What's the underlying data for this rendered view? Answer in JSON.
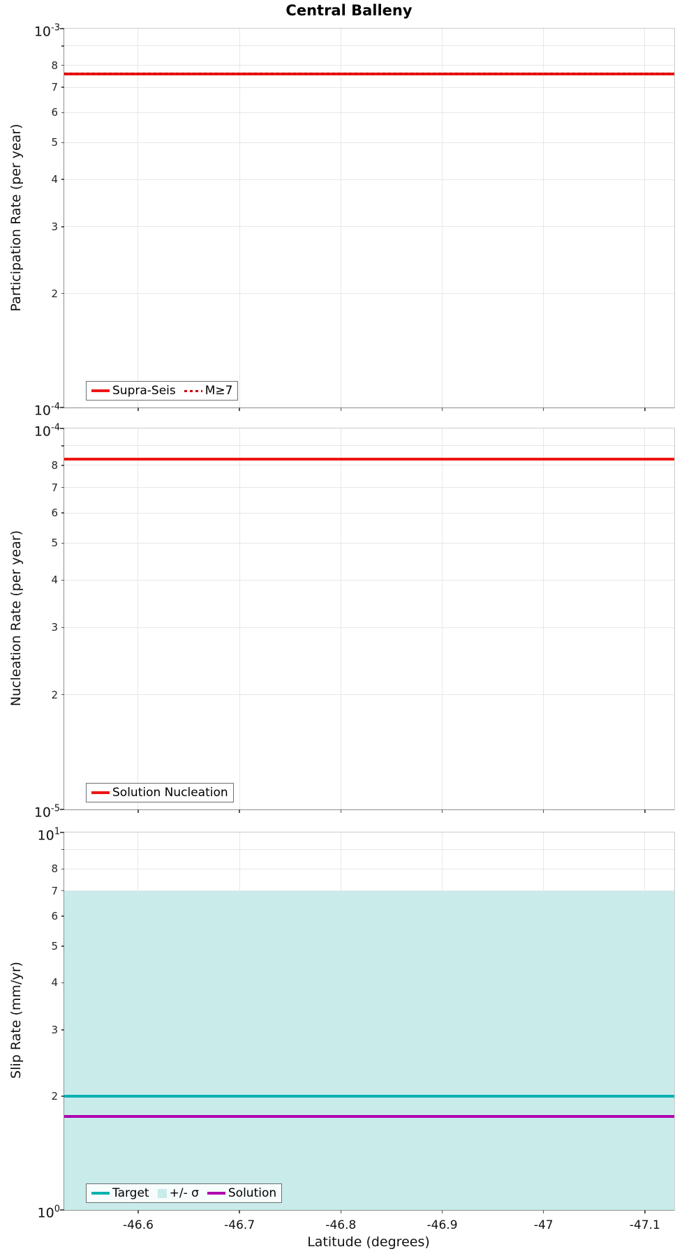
{
  "figure": {
    "title": "Central Balleny",
    "xlabel": "Latitude (degrees)"
  },
  "chart_data": [
    {
      "type": "line",
      "name": "participation-rate",
      "ylabel": "Participation Rate (per year)",
      "yscale": "log",
      "ylim": [
        0.0001,
        0.001
      ],
      "y_decade_top": {
        "base": "10",
        "exp": "-3"
      },
      "y_decade_bottom": {
        "base": "10",
        "exp": "-4"
      },
      "y_minor_gridlines": [
        9,
        8,
        7,
        6,
        5,
        4,
        3,
        2
      ],
      "y_minor_labels": [
        8,
        7,
        6,
        5,
        4,
        3,
        2
      ],
      "xlim": [
        -46.527,
        -47.129
      ],
      "xticks": [
        {
          "v": -46.6,
          "label": "-46.6"
        },
        {
          "v": -46.7,
          "label": "-46.7"
        },
        {
          "v": -46.8,
          "label": "-46.8"
        },
        {
          "v": -46.9,
          "label": "-46.9"
        },
        {
          "v": -47.0,
          "label": "-47"
        },
        {
          "v": -47.1,
          "label": "-47.1"
        }
      ],
      "show_x_tick_labels": false,
      "grid": true,
      "legend_position": "lower-left",
      "items": [
        {
          "kind": "line",
          "label": "Supra-Seis",
          "color": "#f01414",
          "dash": "solid",
          "width": 4,
          "y": 0.00076
        },
        {
          "kind": "line",
          "label": "M≥7",
          "color": "#d40000",
          "dash": "dotted",
          "width": 2.5,
          "y": 0.00076
        }
      ]
    },
    {
      "type": "line",
      "name": "nucleation-rate",
      "ylabel": "Nucleation Rate (per year)",
      "yscale": "log",
      "ylim": [
        1e-05,
        0.0001
      ],
      "y_decade_top": {
        "base": "10",
        "exp": "-4"
      },
      "y_decade_bottom": {
        "base": "10",
        "exp": "-5"
      },
      "y_minor_gridlines": [
        9,
        8,
        7,
        6,
        5,
        4,
        3,
        2
      ],
      "y_minor_labels": [
        8,
        7,
        6,
        5,
        4,
        3,
        2
      ],
      "xlim": [
        -46.527,
        -47.129
      ],
      "xticks": [
        {
          "v": -46.6,
          "label": "-46.6"
        },
        {
          "v": -46.7,
          "label": "-46.7"
        },
        {
          "v": -46.8,
          "label": "-46.8"
        },
        {
          "v": -46.9,
          "label": "-46.9"
        },
        {
          "v": -47.0,
          "label": "-47"
        },
        {
          "v": -47.1,
          "label": "-47.1"
        }
      ],
      "show_x_tick_labels": false,
      "grid": true,
      "legend_position": "lower-left",
      "items": [
        {
          "kind": "line",
          "label": "Solution Nucleation",
          "color": "#f01414",
          "dash": "solid",
          "width": 4,
          "y": 8.3e-05
        }
      ]
    },
    {
      "type": "line",
      "name": "slip-rate",
      "ylabel": "Slip Rate (mm/yr)",
      "yscale": "log",
      "ylim": [
        1,
        10
      ],
      "y_decade_top": {
        "base": "10",
        "exp": "1"
      },
      "y_decade_bottom": {
        "base": "10",
        "exp": "0"
      },
      "y_minor_gridlines": [
        9,
        8,
        7,
        6,
        5,
        4,
        3,
        2
      ],
      "y_minor_labels": [
        8,
        7,
        6,
        5,
        4,
        3,
        2
      ],
      "xlim": [
        -46.527,
        -47.129
      ],
      "xticks": [
        {
          "v": -46.6,
          "label": "-46.6"
        },
        {
          "v": -46.7,
          "label": "-46.7"
        },
        {
          "v": -46.8,
          "label": "-46.8"
        },
        {
          "v": -46.9,
          "label": "-46.9"
        },
        {
          "v": -47.0,
          "label": "-47"
        },
        {
          "v": -47.1,
          "label": "-47.1"
        }
      ],
      "show_x_tick_labels": true,
      "grid": true,
      "legend_position": "lower-left",
      "items": [
        {
          "kind": "line",
          "label": "Target",
          "color": "#00b2b2",
          "dash": "solid",
          "width": 4,
          "y": 2.0
        },
        {
          "kind": "band",
          "label": "+/- σ",
          "color": "#c9eceb",
          "lo": 1.0,
          "hi": 7.0
        },
        {
          "kind": "line",
          "label": "Solution",
          "color": "#b000b0",
          "dash": "solid",
          "width": 3.5,
          "y": 1.77
        }
      ]
    }
  ]
}
